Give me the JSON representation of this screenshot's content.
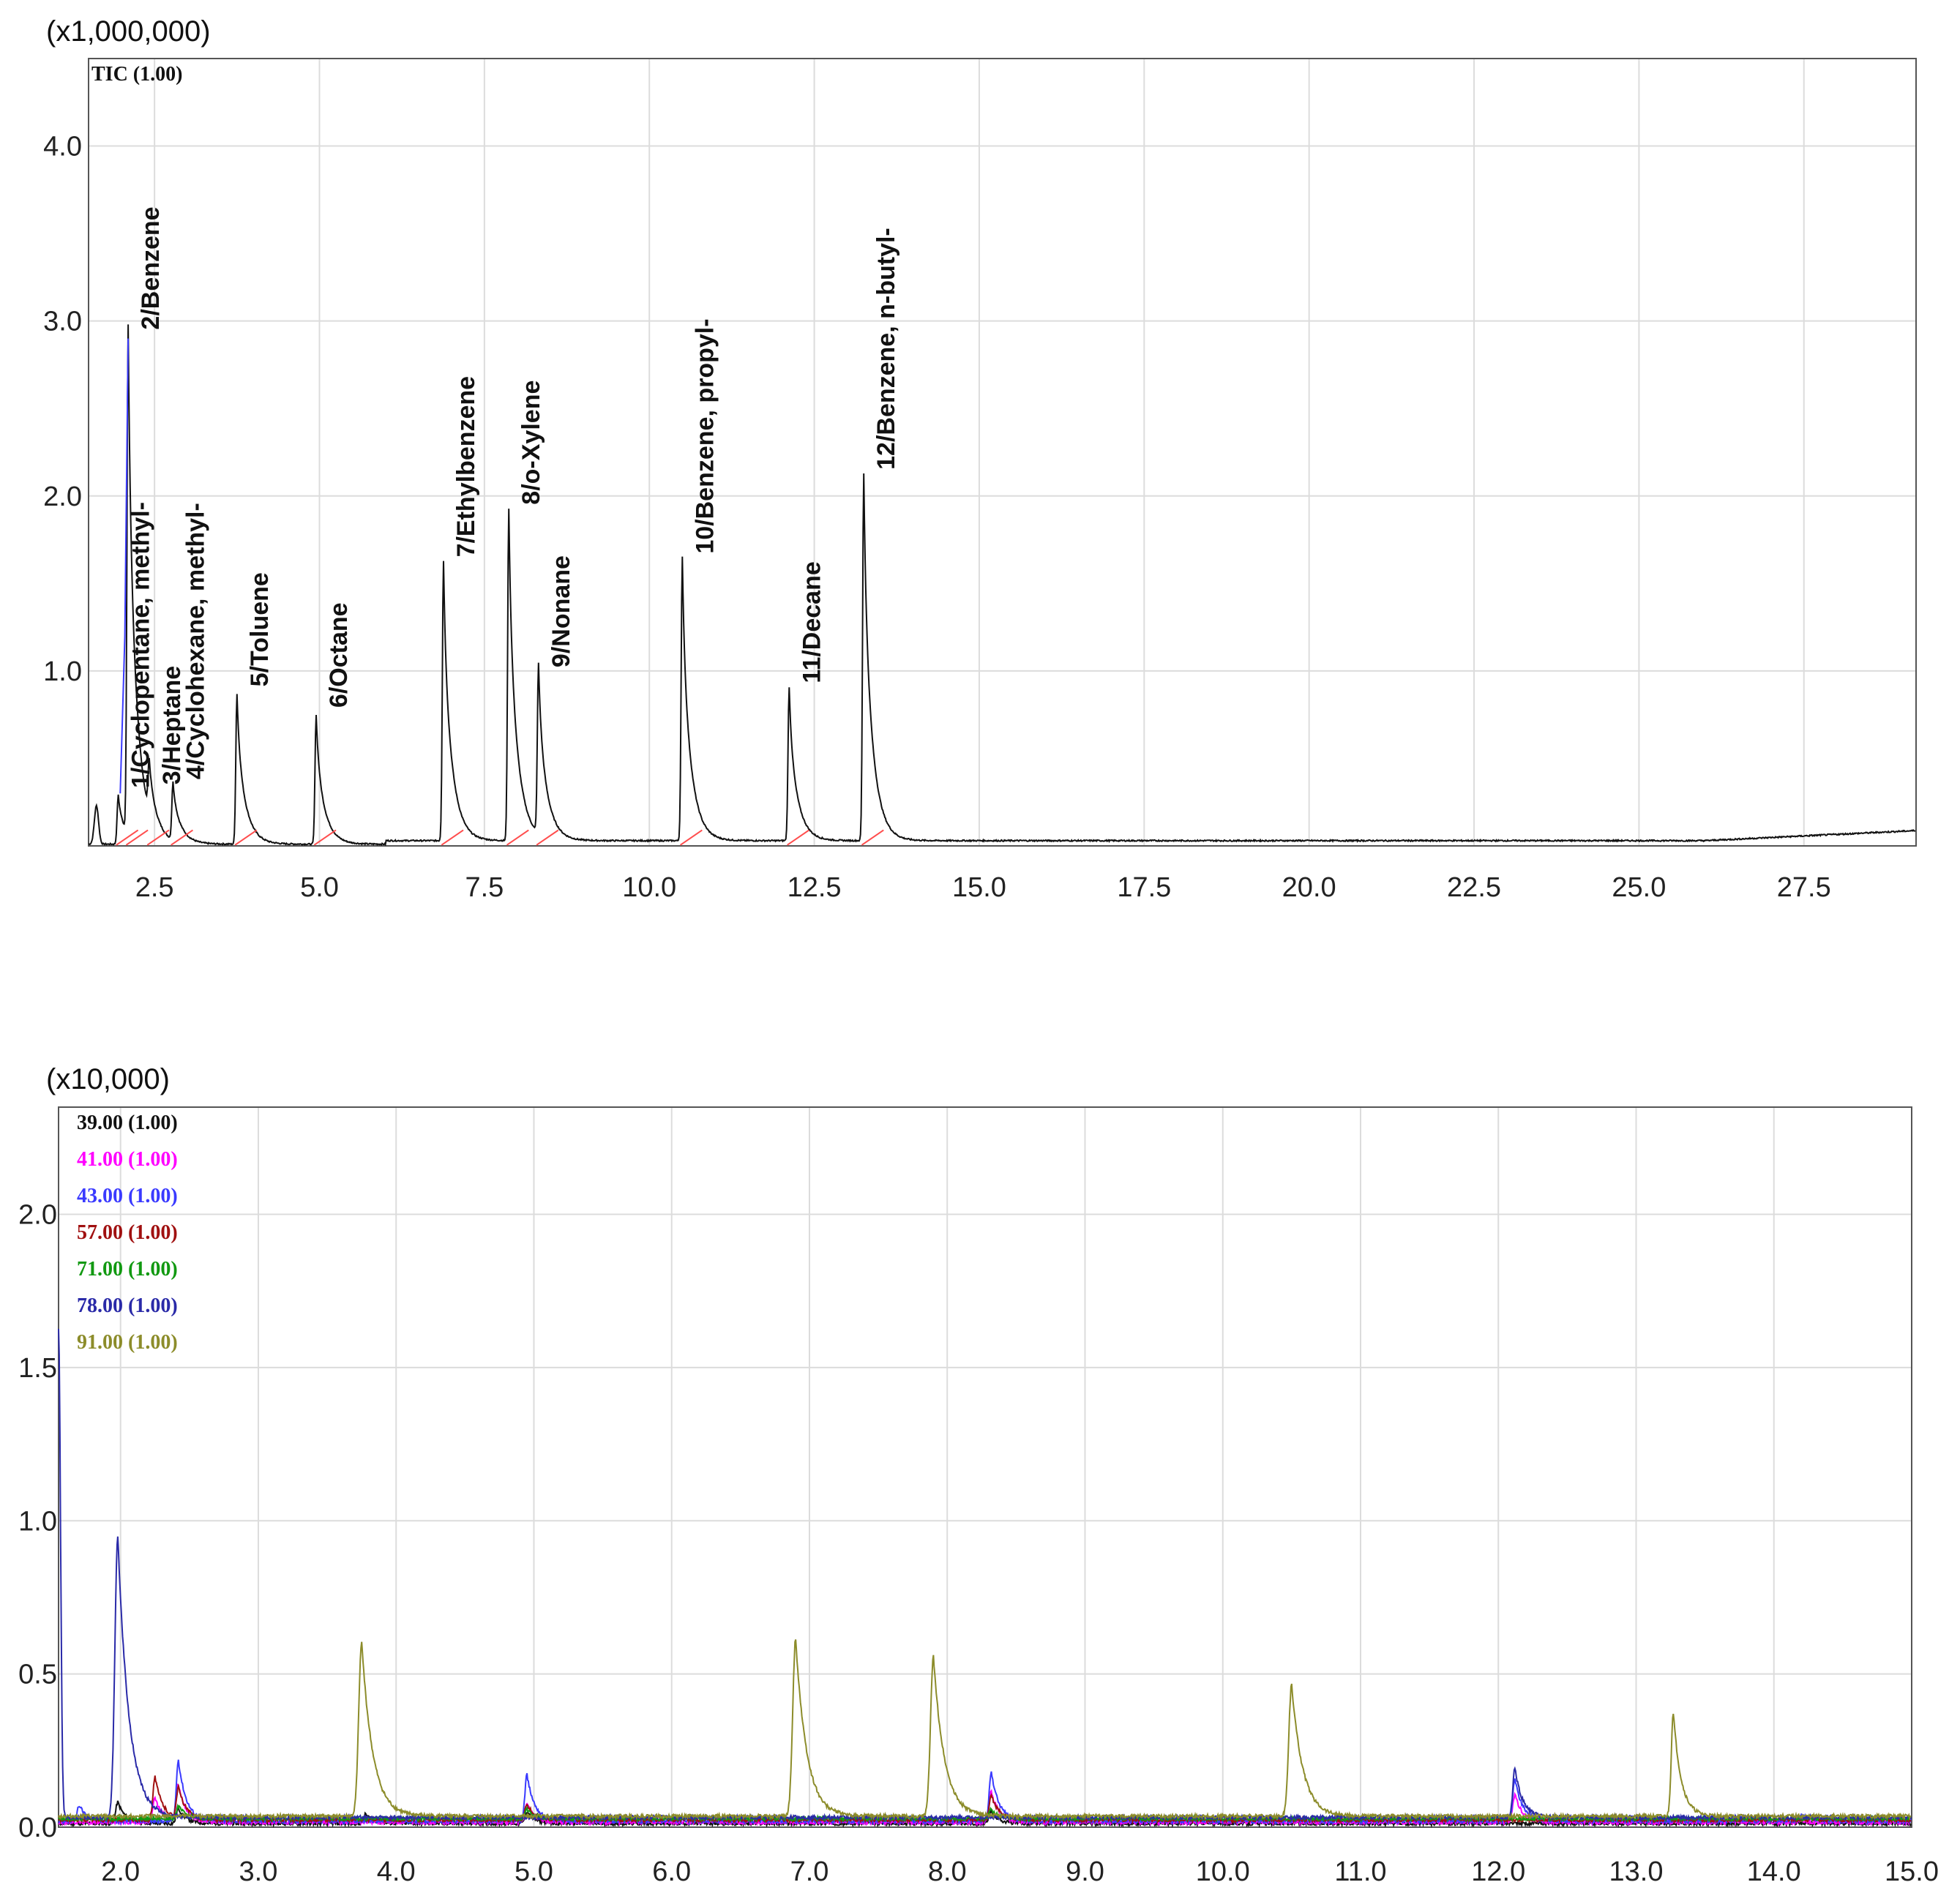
{
  "colors": {
    "grid": "#dcdcdc",
    "frame": "#555555",
    "tic": "#111111",
    "baseline": "#ff4d4d",
    "blue_trace": "#3a3aff"
  },
  "chart_data": [
    {
      "type": "line",
      "scale_label": "(x1,000,000)",
      "legend": [
        {
          "name": "TIC (1.00)",
          "color": "#111111"
        }
      ],
      "xlim": [
        1.5,
        29.2
      ],
      "ylim": [
        0,
        4.5
      ],
      "x_ticks": [
        "2.5",
        "5.0",
        "7.5",
        "10.0",
        "12.5",
        "15.0",
        "17.5",
        "20.0",
        "22.5",
        "25.0",
        "27.5"
      ],
      "y_ticks": [
        "1.0",
        "2.0",
        "3.0",
        "4.0"
      ],
      "peaks": [
        {
          "label": "1/Cyclopentane, methyl-",
          "rt": 1.95,
          "height": 0.28
        },
        {
          "label": "2/Benzene",
          "rt": 2.1,
          "height": 2.9
        },
        {
          "label": "3/Heptane",
          "rt": 2.42,
          "height": 0.3
        },
        {
          "label": "4/Cyclohexane, methyl-",
          "rt": 2.78,
          "height": 0.33
        },
        {
          "label": "5/Toluene",
          "rt": 3.75,
          "height": 0.86
        },
        {
          "label": "6/Octane",
          "rt": 4.95,
          "height": 0.74
        },
        {
          "label": "7/Ethylbenzene",
          "rt": 6.88,
          "height": 1.6
        },
        {
          "label": "8/o-Xylene",
          "rt": 7.87,
          "height": 1.9
        },
        {
          "label": "9/Nonane",
          "rt": 8.32,
          "height": 0.97
        },
        {
          "label": "10/Benzene, propyl-",
          "rt": 10.5,
          "height": 1.62
        },
        {
          "label": "11/Decane",
          "rt": 12.12,
          "height": 0.88
        },
        {
          "label": "12/Benzene, n-butyl-",
          "rt": 13.25,
          "height": 2.1
        }
      ]
    },
    {
      "type": "line",
      "scale_label": "(x10,000)",
      "xlim": [
        1.55,
        15.0
      ],
      "ylim": [
        0,
        2.35
      ],
      "x_ticks": [
        "2.0",
        "3.0",
        "4.0",
        "5.0",
        "6.0",
        "7.0",
        "8.0",
        "9.0",
        "10.0",
        "11.0",
        "12.0",
        "13.0",
        "14.0",
        "15.0"
      ],
      "y_ticks": [
        "0.0",
        "0.5",
        "1.0",
        "1.5",
        "2.0"
      ],
      "series": [
        {
          "name": "39.00 (1.00)",
          "color": "#111111",
          "peaks": [
            [
              1.98,
              0.07
            ],
            [
              2.42,
              0.05
            ],
            [
              3.78,
              0.03
            ],
            [
              4.95,
              0.04
            ],
            [
              8.32,
              0.04
            ]
          ]
        },
        {
          "name": "41.00 (1.00)",
          "color": "#ff00ff",
          "peaks": [
            [
              2.25,
              0.08
            ],
            [
              2.42,
              0.12
            ],
            [
              4.95,
              0.06
            ],
            [
              8.32,
              0.1
            ],
            [
              12.12,
              0.09
            ]
          ]
        },
        {
          "name": "43.00 (1.00)",
          "color": "#3a3aff",
          "peaks": [
            [
              1.7,
              0.05
            ],
            [
              2.42,
              0.2
            ],
            [
              4.95,
              0.15
            ],
            [
              8.32,
              0.16
            ],
            [
              12.12,
              0.14
            ],
            [
              14.2,
              0.02
            ]
          ]
        },
        {
          "name": "57.00 (1.00)",
          "color": "#a01010",
          "peaks": [
            [
              2.25,
              0.14
            ],
            [
              2.42,
              0.1
            ],
            [
              4.95,
              0.05
            ],
            [
              8.32,
              0.08
            ]
          ]
        },
        {
          "name": "71.00 (1.00)",
          "color": "#119911",
          "peaks": [
            [
              2.42,
              0.04
            ],
            [
              4.95,
              0.03
            ],
            [
              8.32,
              0.03
            ]
          ]
        },
        {
          "name": "78.00 (1.00)",
          "color": "#2a2aa8",
          "peaks": [
            [
              1.98,
              0.92
            ],
            [
              12.12,
              0.16
            ]
          ]
        },
        {
          "name": "91.00 (1.00)",
          "color": "#8c8c2a",
          "peaks": [
            [
              3.75,
              0.57
            ],
            [
              6.9,
              0.58
            ],
            [
              7.9,
              0.52
            ],
            [
              10.5,
              0.43
            ],
            [
              13.27,
              0.34
            ]
          ]
        }
      ]
    }
  ]
}
